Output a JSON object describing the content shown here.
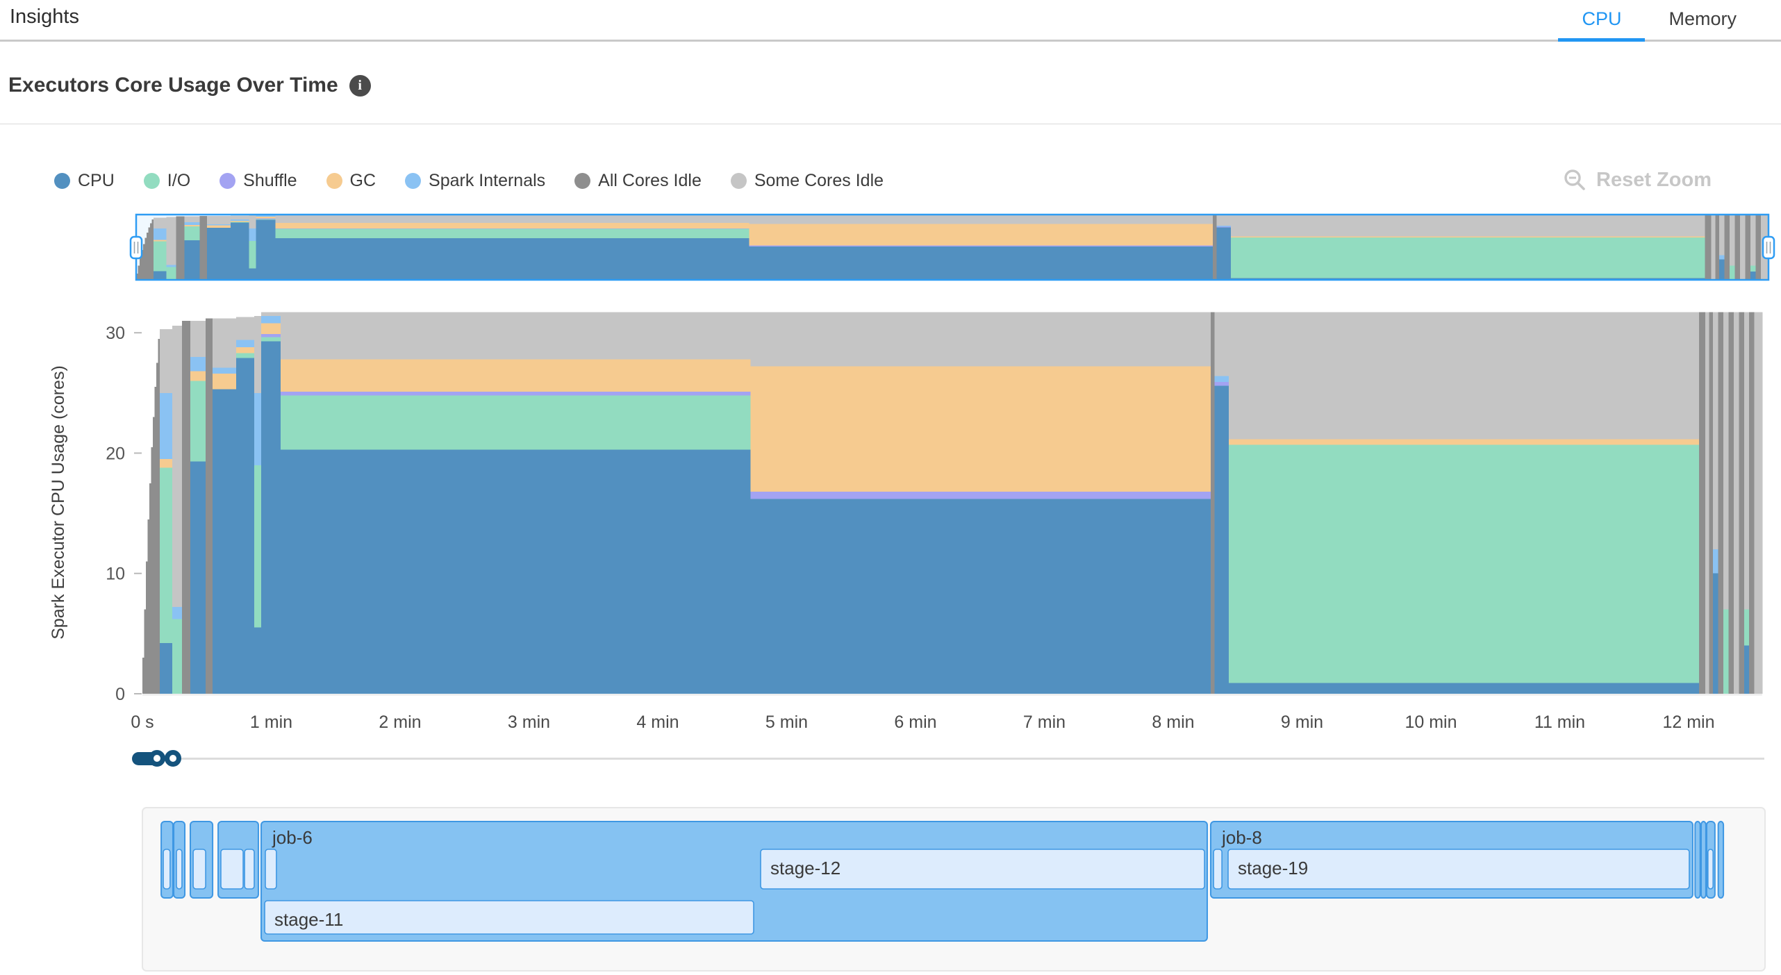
{
  "header": {
    "title": "Insights",
    "tabs": [
      {
        "label": "CPU",
        "active": true
      },
      {
        "label": "Memory",
        "active": false
      }
    ]
  },
  "section": {
    "title": "Executors Core Usage Over Time",
    "info_glyph": "i"
  },
  "toolbar": {
    "reset_zoom_label": "Reset Zoom"
  },
  "colors": {
    "cpu": "#5290c0",
    "io": "#92dcc0",
    "shuffle": "#a3a3f2",
    "gc": "#f6cb90",
    "spark_internals": "#8ac2f3",
    "all_idle": "#8e8e8e",
    "some_idle": "#c5c5c5",
    "tab_accent": "#2196f3",
    "brush_accent": "#2e9cf3",
    "job_fill": "#85c2f2",
    "job_border": "#3e97e3",
    "stage_fill": "#ddecfd",
    "slider_accent": "#14537d"
  },
  "legend": [
    {
      "key": "cpu",
      "label": "CPU"
    },
    {
      "key": "io",
      "label": "I/O"
    },
    {
      "key": "shuffle",
      "label": "Shuffle"
    },
    {
      "key": "gc",
      "label": "GC"
    },
    {
      "key": "spark_internals",
      "label": "Spark Internals"
    },
    {
      "key": "all_idle",
      "label": "All Cores Idle"
    },
    {
      "key": "some_idle",
      "label": "Some Cores Idle"
    }
  ],
  "chart_data": {
    "type": "area",
    "stacked": true,
    "title": "Executors Core Usage Over Time",
    "ylabel": "Spark Executor CPU Usage (cores)",
    "xlabel": "",
    "ylim": [
      0,
      31.8
    ],
    "xlim_minutes": [
      0,
      12.57
    ],
    "y_ticks": [
      0,
      10,
      20,
      30
    ],
    "x_ticks": [
      {
        "t": 0,
        "label": "0 s"
      },
      {
        "t": 1,
        "label": "1 min"
      },
      {
        "t": 2,
        "label": "2 min"
      },
      {
        "t": 3,
        "label": "3 min"
      },
      {
        "t": 4,
        "label": "4 min"
      },
      {
        "t": 5,
        "label": "5 min"
      },
      {
        "t": 6,
        "label": "6 min"
      },
      {
        "t": 7,
        "label": "7 min"
      },
      {
        "t": 8,
        "label": "8 min"
      },
      {
        "t": 9,
        "label": "9 min"
      },
      {
        "t": 10,
        "label": "10 min"
      },
      {
        "t": 11,
        "label": "11 min"
      },
      {
        "t": 12,
        "label": "12 min"
      }
    ],
    "layer_order": [
      "cpu",
      "io",
      "shuffle",
      "gc",
      "spark_internals",
      "all_idle"
    ],
    "segment_columns": [
      "t0",
      "t1",
      "cpu",
      "io",
      "shuffle",
      "gc",
      "spark_internals",
      "all_idle",
      "total"
    ],
    "segments": [
      [
        0.0,
        0.0135,
        0,
        0,
        0,
        0,
        0,
        3,
        3
      ],
      [
        0.0135,
        0.027,
        0,
        0,
        0,
        0,
        0,
        7,
        7
      ],
      [
        0.027,
        0.0405,
        0,
        0,
        0,
        0,
        0,
        11,
        11
      ],
      [
        0.0405,
        0.054,
        0,
        0,
        0,
        0,
        0,
        14.5,
        14.5
      ],
      [
        0.054,
        0.0675,
        0,
        0,
        0,
        0,
        0,
        17.5,
        17.5
      ],
      [
        0.0675,
        0.081,
        0,
        0,
        0,
        0,
        0,
        20.5,
        20.5
      ],
      [
        0.081,
        0.0945,
        0,
        0,
        0,
        0,
        0,
        23,
        23
      ],
      [
        0.0945,
        0.108,
        0,
        0,
        0,
        0,
        0,
        25.5,
        25.5
      ],
      [
        0.108,
        0.1215,
        0,
        0,
        0,
        0,
        0,
        27.5,
        27.5
      ],
      [
        0.1215,
        0.135,
        0,
        0,
        0,
        0,
        0,
        29.5,
        29.5
      ],
      [
        0.135,
        0.232,
        4.2,
        14.6,
        0,
        0.7,
        5.5,
        0,
        30.3
      ],
      [
        0.232,
        0.307,
        0,
        6.2,
        0,
        0,
        1.0,
        0,
        30.6
      ],
      [
        0.307,
        0.372,
        0,
        0,
        0,
        0,
        0,
        31.0,
        31.0
      ],
      [
        0.372,
        0.49,
        19.3,
        6.7,
        0,
        0.8,
        1.2,
        0,
        31.0
      ],
      [
        0.49,
        0.545,
        0,
        0,
        0,
        0,
        0,
        31.2,
        31.2
      ],
      [
        0.545,
        0.728,
        25.3,
        0,
        0,
        1.3,
        0.5,
        0,
        31.2
      ],
      [
        0.728,
        0.868,
        27.9,
        0.4,
        0,
        0.5,
        0.6,
        0,
        31.3
      ],
      [
        0.868,
        0.922,
        5.5,
        13.5,
        0,
        0,
        6.0,
        0,
        31.4
      ],
      [
        0.922,
        1.073,
        29.3,
        0.35,
        0.25,
        0.9,
        0.6,
        0,
        31.7
      ],
      [
        1.073,
        4.72,
        20.3,
        4.5,
        0.3,
        2.7,
        0,
        0,
        31.7
      ],
      [
        4.72,
        8.29,
        16.2,
        0,
        0.6,
        10.4,
        0,
        0,
        31.7
      ],
      [
        8.29,
        8.32,
        0,
        0,
        0,
        0,
        0,
        31.7,
        31.7
      ],
      [
        8.32,
        8.43,
        25.6,
        0,
        0.3,
        0,
        0.5,
        0,
        31.7
      ],
      [
        8.43,
        12.08,
        0.9,
        19.8,
        0,
        0.45,
        0,
        0,
        31.7
      ],
      [
        12.08,
        12.13,
        0,
        0,
        0,
        0,
        0,
        31.7,
        31.7
      ],
      [
        12.13,
        12.16,
        0,
        0,
        0,
        0,
        0,
        0,
        31.7
      ],
      [
        12.16,
        12.19,
        0,
        0,
        0,
        0,
        0,
        31.7,
        31.7
      ],
      [
        12.19,
        12.23,
        10,
        0,
        0,
        0,
        2,
        0,
        31.7
      ],
      [
        12.23,
        12.27,
        0,
        0,
        0,
        0,
        0,
        31.7,
        31.7
      ],
      [
        12.27,
        12.31,
        0,
        7,
        0,
        0,
        0,
        0,
        31.7
      ],
      [
        12.31,
        12.35,
        0,
        0,
        0,
        0,
        0,
        31.7,
        31.7
      ],
      [
        12.35,
        12.39,
        0,
        0,
        0,
        0,
        0,
        0,
        31.7
      ],
      [
        12.39,
        12.43,
        0,
        0,
        0,
        0,
        0,
        31.7,
        31.7
      ],
      [
        12.43,
        12.47,
        4,
        3,
        0,
        0,
        0,
        0,
        31.7
      ],
      [
        12.47,
        12.51,
        0,
        0,
        0,
        0,
        0,
        31.7,
        31.7
      ],
      [
        12.51,
        12.57,
        0,
        0,
        0,
        0,
        0,
        0,
        31.7
      ]
    ]
  },
  "brush": {
    "selection_full_range": true,
    "handle_glyph": "drag-grip"
  },
  "range_slider": {
    "handles_fraction": [
      0.012,
      0.022
    ]
  },
  "timeline": {
    "jobs": [
      {
        "label": "",
        "t0": 0.146,
        "t1": 0.237,
        "size": "short",
        "stages": [
          {
            "label": "",
            "t0": 0.162,
            "t1": 0.215,
            "row": 1
          }
        ]
      },
      {
        "label": "",
        "t0": 0.243,
        "t1": 0.329,
        "size": "short",
        "stages": [
          {
            "label": "",
            "t0": 0.264,
            "t1": 0.307,
            "row": 1
          }
        ]
      },
      {
        "label": "",
        "t0": 0.372,
        "t1": 0.545,
        "size": "short",
        "stages": [
          {
            "label": "",
            "t0": 0.394,
            "t1": 0.491,
            "row": 1
          }
        ]
      },
      {
        "label": "",
        "t0": 0.588,
        "t1": 0.9,
        "size": "short",
        "stages": [
          {
            "label": "",
            "t0": 0.609,
            "t1": 0.782,
            "row": 1
          },
          {
            "label": "",
            "t0": 0.793,
            "t1": 0.868,
            "row": 1
          }
        ]
      },
      {
        "label": "job-6",
        "t0": 0.922,
        "t1": 8.264,
        "size": "tall",
        "stages": [
          {
            "label": "",
            "t0": 0.954,
            "t1": 1.04,
            "row": 1
          },
          {
            "label": "stage-12",
            "t0": 4.798,
            "t1": 8.243,
            "row": 1
          },
          {
            "label": "stage-11",
            "t0": 0.949,
            "t1": 4.744,
            "row": 2
          }
        ]
      },
      {
        "label": "job-8",
        "t0": 8.291,
        "t1": 12.032,
        "size": "short",
        "stages": [
          {
            "label": "",
            "t0": 8.313,
            "t1": 8.378,
            "row": 1
          },
          {
            "label": "stage-19",
            "t0": 8.426,
            "t1": 12.005,
            "row": 1
          }
        ]
      },
      {
        "label": "",
        "t0": 12.05,
        "t1": 12.09,
        "size": "short",
        "stages": []
      },
      {
        "label": "",
        "t0": 12.097,
        "t1": 12.134,
        "size": "short",
        "stages": []
      },
      {
        "label": "",
        "t0": 12.14,
        "t1": 12.204,
        "size": "short",
        "stages": [
          {
            "label": "",
            "t0": 12.15,
            "t1": 12.19,
            "row": 1
          }
        ]
      },
      {
        "label": "",
        "t0": 12.23,
        "t1": 12.27,
        "size": "short",
        "stages": []
      }
    ]
  }
}
